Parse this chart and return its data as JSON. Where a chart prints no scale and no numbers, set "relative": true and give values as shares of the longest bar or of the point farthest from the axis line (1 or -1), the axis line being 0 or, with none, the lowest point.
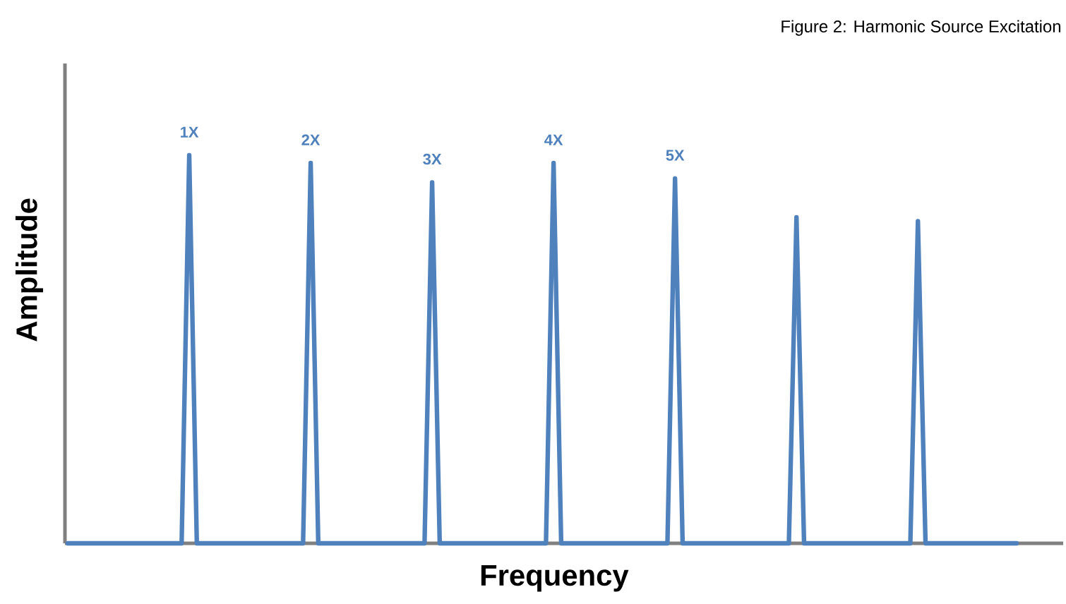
{
  "chart_data": {
    "type": "line",
    "title": "Figure 2:  Harmonic Source Excitation",
    "xlabel": "Frequency",
    "ylabel": "Amplitude",
    "relative": true,
    "color": "#4f81bd",
    "annotations": [
      "1X",
      "2X",
      "3X",
      "4X",
      "5X"
    ],
    "categories": [
      null,
      null,
      null,
      null,
      null,
      null,
      null,
      null,
      null,
      null,
      null,
      null,
      null,
      null,
      null,
      null,
      null,
      null,
      null,
      null,
      null,
      null,
      null,
      null,
      null,
      null,
      null,
      null,
      null,
      null,
      null,
      null,
      null,
      null,
      null,
      null,
      null,
      null,
      null,
      null,
      null,
      null,
      null,
      null,
      null,
      null,
      null,
      null,
      null,
      null,
      null,
      null,
      null,
      null,
      null,
      null,
      null,
      null,
      null,
      null,
      null,
      null,
      null,
      null,
      null,
      null,
      null,
      null,
      null,
      null,
      null,
      null,
      null,
      null,
      null,
      null,
      null,
      null,
      null,
      null,
      null,
      null,
      null,
      null,
      null,
      null,
      null,
      null,
      null,
      null,
      null,
      null,
      null,
      null,
      null,
      null,
      null,
      null,
      null,
      null,
      null,
      null,
      null,
      null,
      null,
      null,
      null,
      null,
      null,
      null,
      null,
      null,
      null,
      null,
      null,
      null,
      null,
      null,
      null,
      null,
      null,
      null,
      null,
      null,
      null,
      null
    ],
    "values": [
      0,
      0,
      0,
      0,
      0,
      0,
      0,
      0,
      0,
      0,
      0,
      0,
      0,
      0,
      0,
      0,
      1,
      0,
      0,
      0,
      0,
      0,
      0,
      0,
      0,
      0,
      0,
      0,
      0,
      0,
      0,
      0,
      0.98,
      0,
      0,
      0,
      0,
      0,
      0,
      0,
      0,
      0,
      0,
      0,
      0,
      0,
      0,
      0,
      0.93,
      0,
      0,
      0,
      0,
      0,
      0,
      0,
      0,
      0,
      0,
      0,
      0,
      0,
      0,
      0,
      0.98,
      0,
      0,
      0,
      0,
      0,
      0,
      0,
      0,
      0,
      0,
      0,
      0,
      0,
      0,
      0,
      0.94,
      0,
      0,
      0,
      0,
      0,
      0,
      0,
      0,
      0,
      0,
      0,
      0,
      0,
      0,
      0,
      0.84,
      0,
      0,
      0,
      0,
      0,
      0,
      0,
      0,
      0,
      0,
      0,
      0,
      0,
      0,
      0,
      0.83,
      0,
      0,
      0,
      0,
      0,
      0,
      0,
      0,
      0,
      0,
      0,
      0,
      0
    ]
  }
}
